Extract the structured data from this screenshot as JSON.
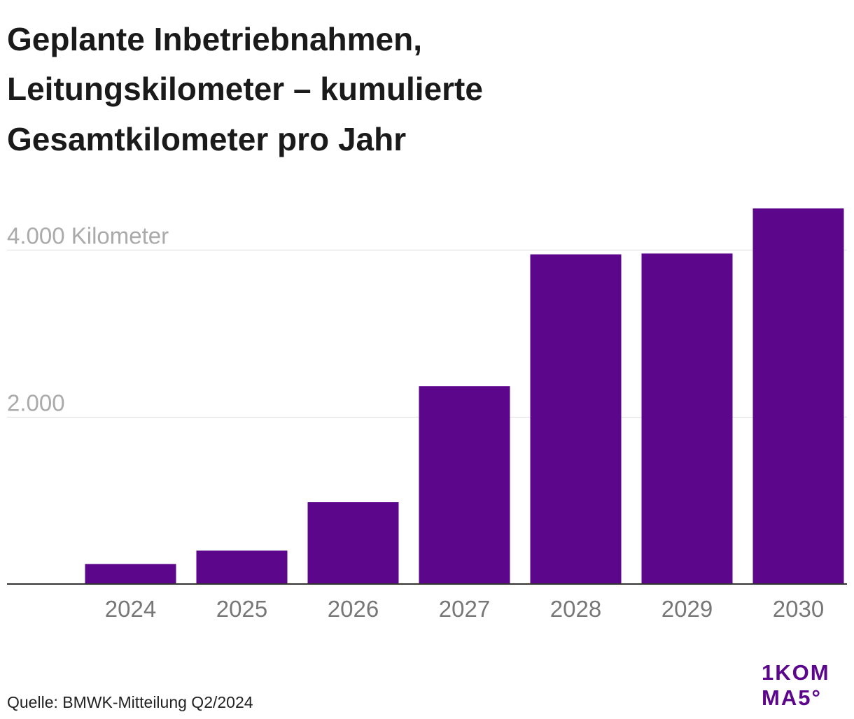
{
  "chart_data": {
    "type": "bar",
    "title": [
      "Geplante Inbetriebnahmen,",
      "Leitungskilometer – kumulierte",
      "Gesamtkilometer pro Jahr"
    ],
    "categories": [
      "2024",
      "2025",
      "2026",
      "2027",
      "2028",
      "2029",
      "2030"
    ],
    "values": [
      240,
      400,
      980,
      2370,
      3950,
      3960,
      4500
    ],
    "color": "#5c068c",
    "ylim": [
      0,
      4500
    ],
    "yticks": [
      {
        "value": 2000,
        "label": "2.000"
      },
      {
        "value": 4000,
        "label": "4.000 Kilometer"
      }
    ],
    "grid": true,
    "source": "Quelle: BMWK-Mitteilung Q2/2024",
    "logo": [
      "1KOM",
      "MA5°"
    ]
  }
}
